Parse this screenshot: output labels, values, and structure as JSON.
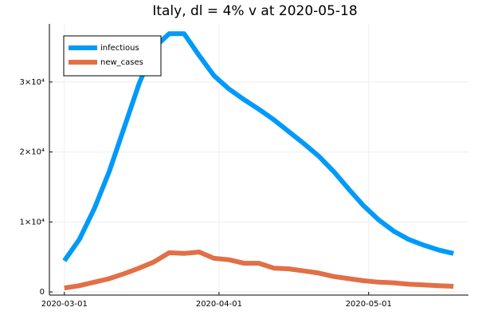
{
  "chart_data": {
    "type": "line",
    "title": "Italy,  dl = 4% v at 2020-05-18",
    "x": [
      "2020-03-01",
      "2020-03-04",
      "2020-03-07",
      "2020-03-10",
      "2020-03-13",
      "2020-03-16",
      "2020-03-19",
      "2020-03-22",
      "2020-03-25",
      "2020-03-28",
      "2020-03-31",
      "2020-04-03",
      "2020-04-06",
      "2020-04-09",
      "2020-04-12",
      "2020-04-15",
      "2020-04-18",
      "2020-04-21",
      "2020-04-24",
      "2020-04-27",
      "2020-04-30",
      "2020-05-03",
      "2020-05-06",
      "2020-05-09",
      "2020-05-12",
      "2020-05-15",
      "2020-05-18"
    ],
    "series": [
      {
        "name": "infectious",
        "color": "#009af9",
        "values": [
          4450,
          7500,
          11900,
          17200,
          23500,
          29800,
          34900,
          36900,
          36900,
          33800,
          30900,
          29000,
          27500,
          26100,
          24600,
          22900,
          21200,
          19400,
          17200,
          14700,
          12300,
          10300,
          8700,
          7500,
          6700,
          6000,
          5500
        ]
      },
      {
        "name": "new_cases",
        "color": "#e26f46",
        "values": [
          570,
          900,
          1400,
          1900,
          2600,
          3400,
          4300,
          5600,
          5500,
          5700,
          4800,
          4600,
          4100,
          4100,
          3400,
          3300,
          3000,
          2700,
          2200,
          1900,
          1600,
          1400,
          1300,
          1100,
          1000,
          900,
          800
        ]
      }
    ],
    "xlim": [
      "2020-02-27",
      "2020-05-21"
    ],
    "xticks": [
      "2020-03-01",
      "2020-04-01",
      "2020-05-01"
    ],
    "ylim": [
      -450,
      38300
    ],
    "yticks": [
      0,
      {
        "value": 10000,
        "label": "1×10⁴"
      },
      {
        "value": 20000,
        "label": "2×10⁴"
      },
      {
        "value": 30000,
        "label": "3×10⁴"
      }
    ],
    "grid": true,
    "legend": "top-left"
  }
}
